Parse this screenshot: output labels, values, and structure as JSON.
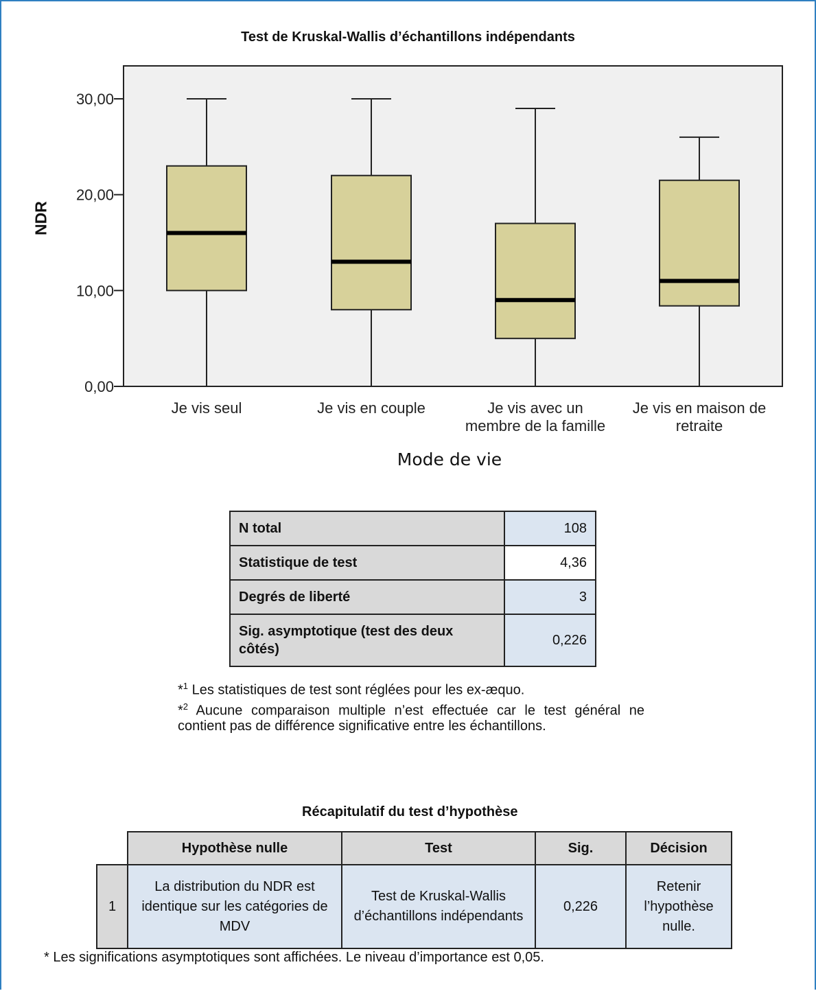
{
  "chart_data": {
    "type": "boxplot",
    "title": "Test de Kruskal-Wallis d’échantillons indépendants",
    "xlabel": "Mode de vie",
    "ylabel": "NDR",
    "ylim": [
      0,
      30
    ],
    "yticks": [
      "0,00",
      "10,00",
      "20,00",
      "30,00"
    ],
    "tick_values": [
      0,
      10,
      20,
      30
    ],
    "categories": [
      [
        "Je vis seul"
      ],
      [
        "Je vis en couple"
      ],
      [
        "Je vis avec un",
        "membre de la famille"
      ],
      [
        "Je vis en maison de",
        "retraite"
      ]
    ],
    "boxes": [
      {
        "min": 0,
        "q1": 10,
        "median": 16,
        "q3": 23,
        "max": 30
      },
      {
        "min": 0,
        "q1": 8,
        "median": 13,
        "q3": 22,
        "max": 30
      },
      {
        "min": 0,
        "q1": 5,
        "median": 9,
        "q3": 17,
        "max": 29
      },
      {
        "min": 0,
        "q1": 8.4,
        "median": 11,
        "q3": 21.5,
        "max": 26
      }
    ],
    "colors": {
      "box_fill": "#d7d19a",
      "plot_bg": "#f0f0f0"
    }
  },
  "stats_table": [
    {
      "label": "N total",
      "value": "108"
    },
    {
      "label": "Statistique de test",
      "value": "4,36"
    },
    {
      "label": "Degrés de liberté",
      "value": "3"
    },
    {
      "label": "Sig. asymptotique (test des deux côtés)",
      "value": "0,226"
    }
  ],
  "notes": [
    {
      "marker": "*",
      "sup": "1",
      "text": " Les statistiques de test sont réglées pour les ex-æquo."
    },
    {
      "marker": "*",
      "sup": "2",
      "text": "  Aucune comparaison multiple n’est effectuée car le test général ne contient pas de différence significative entre les échantillons."
    }
  ],
  "summary": {
    "title": "Récapitulatif du test d’hypothèse",
    "headers": [
      "Hypothèse nulle",
      "Test",
      "Sig.",
      "Décision"
    ],
    "row": {
      "index": "1",
      "hypothesis": "La distribution du NDR est identique sur les catégories de MDV",
      "test": "Test de Kruskal-Wallis d’échantillons indépendants",
      "sig": "0,226",
      "decision": "Retenir l’hypothèse nulle."
    },
    "footnote": "* Les significations asymptotiques sont affichées. Le niveau d’importance est 0,05."
  }
}
